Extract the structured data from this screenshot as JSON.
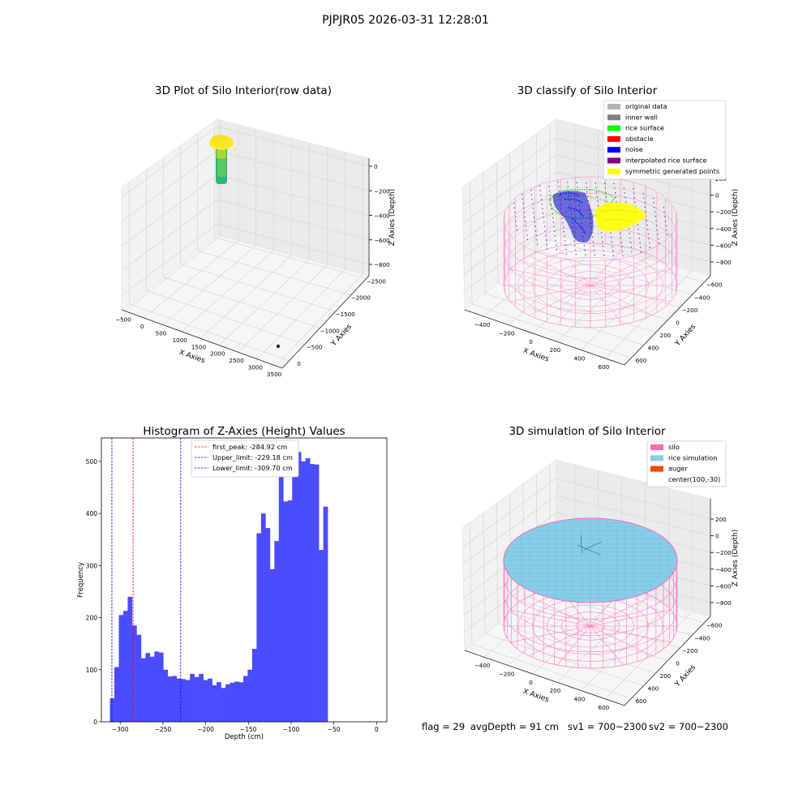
{
  "suptitle": "PJPJR05 2026-03-31 12:28:01",
  "footer": {
    "flag": "flag = 29",
    "avg_depth": "avgDepth = 91 cm",
    "sv1": "sv1 = 700~2300",
    "sv2": "sv2 = 700~2300"
  },
  "colors": {
    "rice_surface": "#00ff00",
    "noise": "#0000ff",
    "silo": "#ff69b4",
    "rice_simulation": "#87ceeb",
    "symmetric": "#ffff00",
    "hist_bar": "#4b4bff"
  },
  "chart_data": [
    {
      "type": "scatter3d",
      "title": "3D Plot of Silo Interior(row data)",
      "xlabel": "X Axies",
      "ylabel": "Y Axies",
      "zlabel": "Z Axies (Depth)",
      "x_ticks": [
        "−500",
        "0",
        "500",
        "1000",
        "1500",
        "2000",
        "2500",
        "3000",
        "3500"
      ],
      "y_ticks": [
        "0",
        "−500",
        "−1000",
        "−1500",
        "−2000",
        "−2500"
      ],
      "z_ticks": [
        "0",
        "−200",
        "−400",
        "−600",
        "−800"
      ],
      "xlim": [
        -500,
        3700
      ],
      "ylim": [
        -2500,
        0
      ],
      "zlim": [
        -900,
        0
      ]
    },
    {
      "type": "scatter3d",
      "title": "3D classify of Silo Interior",
      "xlabel": "X Axies",
      "ylabel": "Y Axies",
      "zlabel": "Z Axies (Depth)",
      "x_ticks": [
        "−400",
        "−200",
        "0",
        "200",
        "400",
        "600"
      ],
      "y_ticks": [
        "600",
        "400",
        "200",
        "0",
        "−200",
        "−400",
        "−600"
      ],
      "z_ticks": [
        "200",
        "0",
        "−200",
        "−400",
        "−600",
        "−800"
      ],
      "legend": [
        {
          "label": "original data",
          "color": "#b3b3b3"
        },
        {
          "label": "inner wall",
          "color": "#808080"
        },
        {
          "label": "rice surface",
          "color": "#00ff00"
        },
        {
          "label": "obstacle",
          "color": "#ff0000"
        },
        {
          "label": "noise",
          "color": "#0000ff"
        },
        {
          "label": "interpolated rice surface",
          "color": "#800080"
        },
        {
          "label": "symmetric generated points",
          "color": "#ffff00"
        }
      ],
      "legend_loc": "upper right"
    },
    {
      "type": "bar",
      "title": "Histogram of Z-Axies (Height) Values",
      "xlabel": "Depth (cm)",
      "ylabel": "Frequency",
      "xlim": [
        -322,
        12
      ],
      "ylim": [
        0,
        545
      ],
      "x_ticks": [
        -300,
        -250,
        -200,
        -150,
        -100,
        -50,
        0
      ],
      "y_ticks": [
        0,
        100,
        200,
        300,
        400,
        500
      ],
      "bin_start": -312,
      "bin_width": 5.2,
      "values": [
        45,
        105,
        205,
        213,
        240,
        185,
        167,
        122,
        132,
        125,
        135,
        133,
        100,
        87,
        88,
        83,
        82,
        80,
        92,
        86,
        92,
        80,
        83,
        70,
        76,
        65,
        72,
        75,
        77,
        76,
        88,
        100,
        140,
        362,
        400,
        372,
        293,
        347,
        472,
        423,
        425,
        495,
        518,
        500,
        506,
        495,
        494,
        330,
        413
      ],
      "lines": [
        {
          "label": "first_peak: -284.92 cm",
          "x": -284.92,
          "color": "#ff0000"
        },
        {
          "label": "Upper_limit: -229.18 cm",
          "x": -229.18,
          "color": "#0000ff"
        },
        {
          "label": "Lower_limit: -309.70 cm",
          "x": -309.7,
          "color": "#0000ff"
        }
      ],
      "legend_loc": "upper center"
    },
    {
      "type": "surface3d",
      "title": "3D simulation of Silo Interior",
      "xlabel": "X Axies",
      "ylabel": "Y Axies",
      "zlabel": "Z Axies (Depth)",
      "x_ticks": [
        "−400",
        "−200",
        "0",
        "200",
        "400",
        "600"
      ],
      "y_ticks": [
        "600",
        "400",
        "200",
        "0",
        "−200",
        "−400",
        "−600"
      ],
      "z_ticks": [
        "200",
        "0",
        "−200",
        "−400",
        "−600",
        "−800"
      ],
      "legend": [
        {
          "label": "silo",
          "color": "#ff69b4"
        },
        {
          "label": "rice simulation",
          "color": "#87ceeb"
        },
        {
          "label": "auger",
          "color": "#ff4500"
        },
        {
          "label": "center(100,-30)",
          "color": ""
        }
      ],
      "legend_loc": "upper right"
    }
  ]
}
